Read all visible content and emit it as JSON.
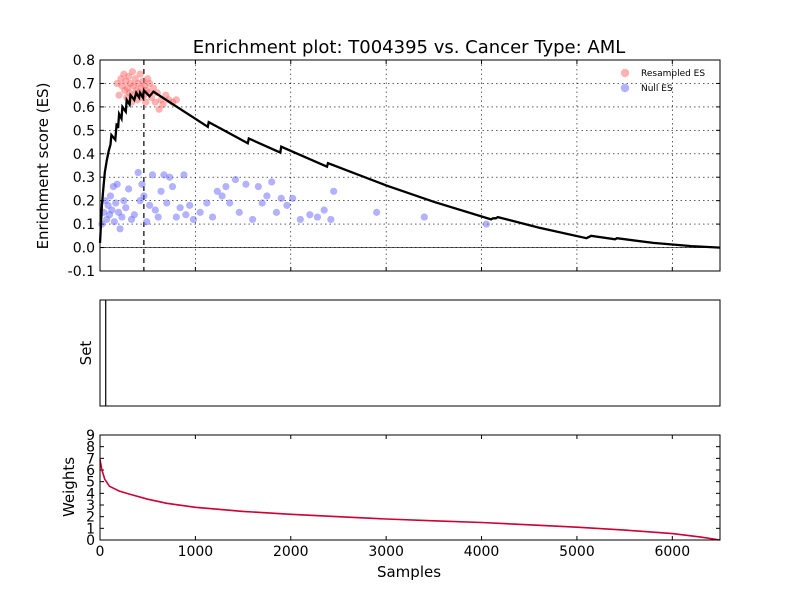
{
  "chart_data": [
    {
      "type": "line",
      "title": "Enrichment plot: T004395 vs. Cancer Type: AML",
      "xlabel": "",
      "ylabel": "Enrichment score (ES)",
      "xlim": [
        0,
        6500
      ],
      "ylim": [
        -0.1,
        0.8
      ],
      "yticks": [
        -0.1,
        0.0,
        0.1,
        0.2,
        0.3,
        0.4,
        0.5,
        0.6,
        0.7,
        0.8
      ],
      "xticks": [
        0,
        1000,
        2000,
        3000,
        4000,
        5000,
        6000
      ],
      "grid": true,
      "legend_position": "top-right",
      "leading_edge_x": 460,
      "series": [
        {
          "name": "",
          "kind": "line",
          "color": "#000000",
          "points": [
            [
              0,
              0.02
            ],
            [
              10,
              0.1
            ],
            [
              20,
              0.18
            ],
            [
              35,
              0.25
            ],
            [
              50,
              0.32
            ],
            [
              70,
              0.37
            ],
            [
              90,
              0.41
            ],
            [
              110,
              0.44
            ],
            [
              120,
              0.48
            ],
            [
              160,
              0.46
            ],
            [
              175,
              0.53
            ],
            [
              190,
              0.51
            ],
            [
              200,
              0.57
            ],
            [
              225,
              0.55
            ],
            [
              235,
              0.6
            ],
            [
              270,
              0.58
            ],
            [
              280,
              0.63
            ],
            [
              310,
              0.61
            ],
            [
              320,
              0.65
            ],
            [
              360,
              0.63
            ],
            [
              380,
              0.66
            ],
            [
              410,
              0.64
            ],
            [
              420,
              0.66
            ],
            [
              450,
              0.64
            ],
            [
              460,
              0.67
            ],
            [
              520,
              0.645
            ],
            [
              560,
              0.665
            ],
            [
              1130,
              0.515
            ],
            [
              1140,
              0.535
            ],
            [
              1550,
              0.445
            ],
            [
              1560,
              0.465
            ],
            [
              1890,
              0.405
            ],
            [
              1900,
              0.43
            ],
            [
              2380,
              0.345
            ],
            [
              2390,
              0.36
            ],
            [
              3000,
              0.265
            ],
            [
              3500,
              0.195
            ],
            [
              4100,
              0.12
            ],
            [
              4120,
              0.125
            ],
            [
              4150,
              0.125
            ],
            [
              4170,
              0.13
            ],
            [
              4600,
              0.085
            ],
            [
              5100,
              0.04
            ],
            [
              5150,
              0.05
            ],
            [
              5400,
              0.035
            ],
            [
              5420,
              0.04
            ],
            [
              5800,
              0.02
            ],
            [
              6200,
              0.006
            ],
            [
              6500,
              0.0
            ]
          ]
        },
        {
          "name": "Resampled ES",
          "kind": "scatter",
          "color": "#ff6666",
          "points": [
            [
              180,
              0.7
            ],
            [
              200,
              0.65
            ],
            [
              220,
              0.72
            ],
            [
              230,
              0.69
            ],
            [
              250,
              0.74
            ],
            [
              260,
              0.67
            ],
            [
              270,
              0.71
            ],
            [
              280,
              0.64
            ],
            [
              290,
              0.68
            ],
            [
              300,
              0.73
            ],
            [
              310,
              0.66
            ],
            [
              320,
              0.7
            ],
            [
              330,
              0.62
            ],
            [
              340,
              0.75
            ],
            [
              350,
              0.69
            ],
            [
              360,
              0.65
            ],
            [
              370,
              0.72
            ],
            [
              380,
              0.67
            ],
            [
              390,
              0.63
            ],
            [
              400,
              0.7
            ],
            [
              410,
              0.66
            ],
            [
              420,
              0.74
            ],
            [
              430,
              0.68
            ],
            [
              440,
              0.64
            ],
            [
              450,
              0.71
            ],
            [
              460,
              0.65
            ],
            [
              470,
              0.69
            ],
            [
              480,
              0.62
            ],
            [
              490,
              0.67
            ],
            [
              500,
              0.72
            ],
            [
              510,
              0.66
            ],
            [
              520,
              0.7
            ],
            [
              540,
              0.64
            ],
            [
              560,
              0.68
            ],
            [
              580,
              0.62
            ],
            [
              600,
              0.66
            ],
            [
              620,
              0.59
            ],
            [
              640,
              0.63
            ],
            [
              660,
              0.61
            ],
            [
              690,
              0.65
            ],
            [
              720,
              0.63
            ],
            [
              760,
              0.62
            ],
            [
              800,
              0.63
            ]
          ]
        },
        {
          "name": "Null ES",
          "kind": "scatter",
          "color": "#6666ff",
          "points": [
            [
              20,
              0.1
            ],
            [
              40,
              0.15
            ],
            [
              55,
              0.2
            ],
            [
              70,
              0.12
            ],
            [
              85,
              0.18
            ],
            [
              100,
              0.14
            ],
            [
              110,
              0.22
            ],
            [
              125,
              0.16
            ],
            [
              140,
              0.26
            ],
            [
              150,
              0.11
            ],
            [
              165,
              0.19
            ],
            [
              180,
              0.27
            ],
            [
              195,
              0.15
            ],
            [
              210,
              0.08
            ],
            [
              230,
              0.13
            ],
            [
              250,
              0.2
            ],
            [
              270,
              0.17
            ],
            [
              300,
              0.25
            ],
            [
              330,
              0.12
            ],
            [
              360,
              0.14
            ],
            [
              400,
              0.32
            ],
            [
              420,
              0.2
            ],
            [
              440,
              0.27
            ],
            [
              460,
              0.22
            ],
            [
              490,
              0.11
            ],
            [
              520,
              0.18
            ],
            [
              550,
              0.31
            ],
            [
              580,
              0.16
            ],
            [
              610,
              0.13
            ],
            [
              640,
              0.24
            ],
            [
              670,
              0.31
            ],
            [
              700,
              0.19
            ],
            [
              730,
              0.3
            ],
            [
              760,
              0.26
            ],
            [
              800,
              0.13
            ],
            [
              840,
              0.17
            ],
            [
              880,
              0.31
            ],
            [
              900,
              0.14
            ],
            [
              940,
              0.18
            ],
            [
              980,
              0.12
            ],
            [
              1050,
              0.15
            ],
            [
              1120,
              0.19
            ],
            [
              1180,
              0.13
            ],
            [
              1230,
              0.24
            ],
            [
              1280,
              0.22
            ],
            [
              1320,
              0.26
            ],
            [
              1360,
              0.19
            ],
            [
              1420,
              0.29
            ],
            [
              1460,
              0.15
            ],
            [
              1530,
              0.27
            ],
            [
              1600,
              0.12
            ],
            [
              1660,
              0.26
            ],
            [
              1700,
              0.19
            ],
            [
              1750,
              0.22
            ],
            [
              1800,
              0.28
            ],
            [
              1850,
              0.15
            ],
            [
              1900,
              0.21
            ],
            [
              1960,
              0.18
            ],
            [
              2020,
              0.21
            ],
            [
              2100,
              0.12
            ],
            [
              2200,
              0.14
            ],
            [
              2280,
              0.13
            ],
            [
              2350,
              0.16
            ],
            [
              2420,
              0.12
            ],
            [
              2450,
              0.24
            ],
            [
              2900,
              0.15
            ],
            [
              3400,
              0.13
            ],
            [
              4050,
              0.1
            ]
          ]
        }
      ]
    },
    {
      "type": "bar",
      "title": "",
      "xlabel": "",
      "ylabel": "Set",
      "xlim": [
        0,
        6500
      ],
      "hits": [
        60
      ]
    },
    {
      "type": "area",
      "title": "",
      "xlabel": "Samples",
      "ylabel": "Weights",
      "xlim": [
        0,
        6500
      ],
      "ylim": [
        0,
        9
      ],
      "xticks": [
        0,
        1000,
        2000,
        3000,
        4000,
        5000,
        6000
      ],
      "yticks": [
        0,
        1,
        2,
        3,
        4,
        5,
        6,
        7,
        8,
        9
      ],
      "series": [
        {
          "name": "",
          "color": "#cc0033",
          "points": [
            [
              0,
              6.9
            ],
            [
              20,
              6.0
            ],
            [
              50,
              5.2
            ],
            [
              100,
              4.6
            ],
            [
              200,
              4.2
            ],
            [
              300,
              3.95
            ],
            [
              500,
              3.5
            ],
            [
              700,
              3.15
            ],
            [
              1000,
              2.8
            ],
            [
              1500,
              2.45
            ],
            [
              2000,
              2.2
            ],
            [
              2500,
              2.0
            ],
            [
              3000,
              1.8
            ],
            [
              3500,
              1.65
            ],
            [
              4000,
              1.5
            ],
            [
              4500,
              1.3
            ],
            [
              5000,
              1.1
            ],
            [
              5500,
              0.85
            ],
            [
              6000,
              0.55
            ],
            [
              6300,
              0.25
            ],
            [
              6500,
              0.0
            ]
          ]
        }
      ]
    }
  ]
}
